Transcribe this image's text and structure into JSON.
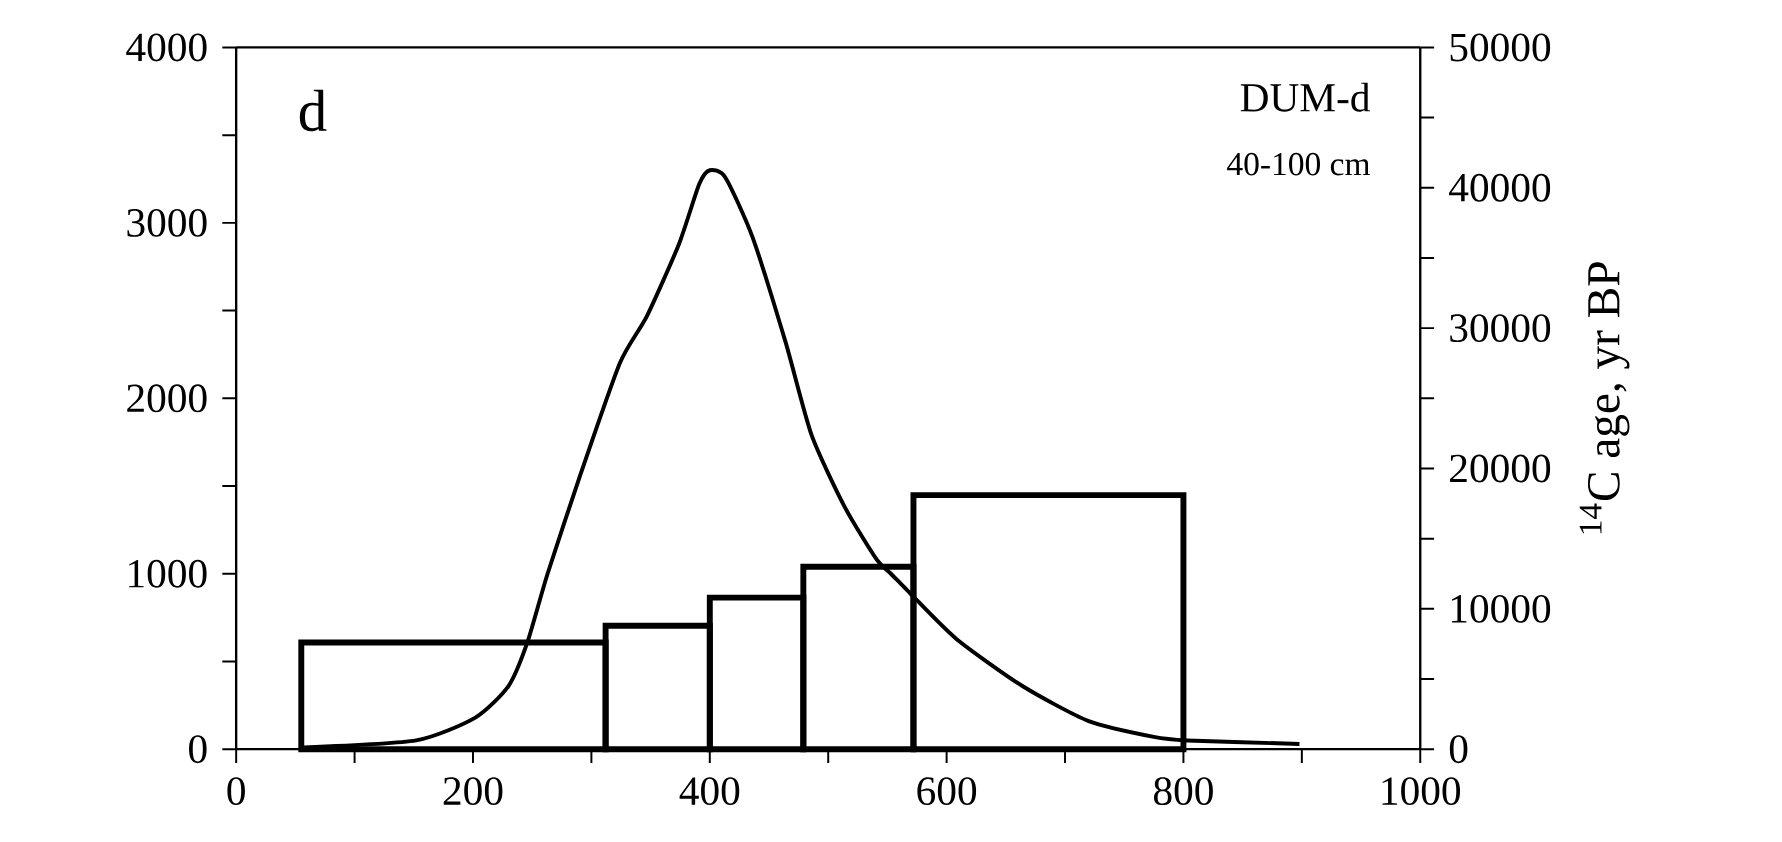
{
  "chart_data": {
    "type": "line",
    "annotations": [
      "d",
      "DUM-d",
      "40-100 cm"
    ],
    "y2label": "$^{14}$C age, yr BP",
    "xlim": [
      0,
      1000
    ],
    "xticks": [
      0,
      {
        "value": 100,
        "label": null
      },
      200,
      {
        "value": 300,
        "label": null
      },
      400,
      {
        "value": 500,
        "label": null
      },
      600,
      {
        "value": 700,
        "label": null
      },
      800,
      {
        "value": 900,
        "label": null
      },
      1000
    ],
    "ylim": [
      0,
      4000
    ],
    "yticks": [
      0,
      {
        "value": 500,
        "label": null
      },
      1000,
      {
        "value": 1500,
        "label": null
      },
      2000,
      {
        "value": 2500,
        "label": null
      },
      3000,
      {
        "value": 3500,
        "label": null
      },
      4000
    ],
    "y2lim": [
      0,
      50000
    ],
    "y2ticks": [
      0,
      {
        "value": 5000,
        "label": null
      },
      10000,
      {
        "value": 15000,
        "label": null
      },
      20000,
      {
        "value": 25000,
        "label": null
      },
      30000,
      {
        "value": 35000,
        "label": null
      },
      40000,
      {
        "value": 45000,
        "label": null
      },
      50000
    ],
    "series": [
      {
        "color": "#000000",
        "x": [
          57,
          152,
          202,
          230,
          246,
          263,
          291,
          324,
          347,
          374,
          391,
          400,
          413,
          436,
          464,
          486,
          514,
          541,
          553,
          569,
          608,
          664,
          720,
          775,
          803,
          898
        ],
        "values": [
          10,
          50,
          180,
          360,
          610,
          1000,
          1570,
          2200,
          2470,
          2880,
          3220,
          3300,
          3260,
          2920,
          2320,
          1790,
          1380,
          1080,
          1000,
          890,
          630,
          360,
          160,
          70,
          50,
          30
        ]
      },
      {
        "type": "histogram",
        "axis": "y2",
        "color": "#000000",
        "bins": [
          55,
          312,
          400,
          479,
          572,
          800
        ],
        "values": [
          7600,
          8800,
          10800,
          13000,
          18100
        ]
      }
    ]
  }
}
